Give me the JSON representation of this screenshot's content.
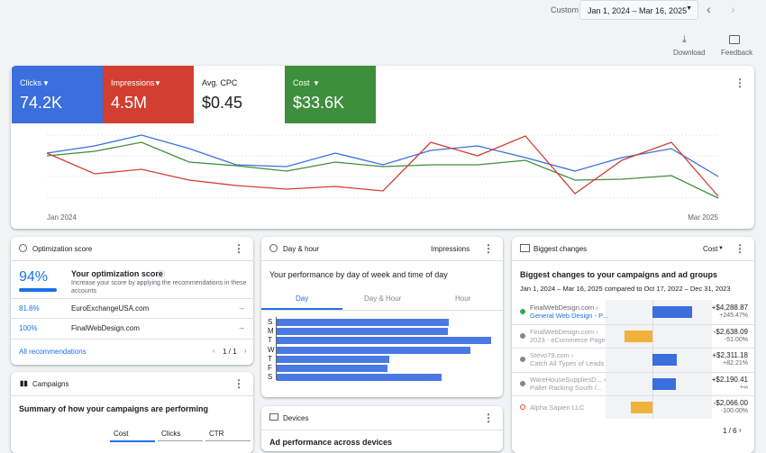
{
  "header": {
    "range_label": "Custom",
    "date_range": "Jan 1, 2024 – Mar 16, 2025",
    "download": "Download",
    "feedback": "Feedback"
  },
  "metrics": [
    {
      "label": "Clicks",
      "value": "74.2K"
    },
    {
      "label": "Impressions",
      "value": "4.5M"
    },
    {
      "label": "Avg. CPC",
      "value": "$0.45"
    },
    {
      "label": "Cost",
      "value": "$33.6K"
    }
  ],
  "overview_chart": {
    "x_labels": [
      "Jan 2024",
      "Mar 2025"
    ]
  },
  "optimization": {
    "title": "Optimization score",
    "score": "94%",
    "heading": "Your optimization score",
    "description": "Increase your score by applying the recommendations in these accounts",
    "rows": [
      {
        "score": "81.8%",
        "account": "EuroExchangeUSA.com"
      },
      {
        "score": "100%",
        "account": "FinalWebDesign.com"
      }
    ],
    "link": "All recommendations",
    "pager": "1 / 1"
  },
  "campaigns": {
    "title": "Campaigns",
    "subtitle": "Summary of how your campaigns are performing",
    "metrics": [
      "Cost",
      "Clicks",
      "CTR"
    ]
  },
  "day_hour": {
    "title": "Day & hour",
    "metric": "Impressions",
    "subtitle": "Your performance by day of week and time of day",
    "tabs": [
      "Day",
      "Day & Hour",
      "Hour"
    ],
    "days": [
      "S",
      "M",
      "T",
      "W",
      "T",
      "F",
      "S"
    ]
  },
  "devices": {
    "title": "Devices",
    "subtitle": "Ad performance across devices"
  },
  "biggest_changes": {
    "title": "Biggest changes",
    "metric": "Cost",
    "subtitle": "Biggest changes to your campaigns and ad groups",
    "compare": "Jan 1, 2024 – Mar 16, 2025 compared to Oct 17, 2022 – Dec 31, 2023",
    "rows": [
      {
        "name": "FinalWebDesign.com ›",
        "sub": "General Web Design - P...",
        "change": "+$4,288.87",
        "percent": "+245.47%"
      },
      {
        "name": "FinalWebDesign.com ›",
        "sub": "2023 - eCommerce Page",
        "change": "-$2,638.09",
        "percent": "-51.00%"
      },
      {
        "name": "Stevo79.com ›",
        "sub": "Catch All Types of Leads",
        "change": "+$2,311.18",
        "percent": "+82.21%"
      },
      {
        "name": "WareHouseSuppliesD... ›",
        "sub": "Pallet Racking South /...",
        "change": "+$2,190.41",
        "percent": "+∞"
      },
      {
        "name": "Alpha Sapien LLC",
        "sub": null,
        "change": "-$2,066.00",
        "percent": "-100.00%"
      }
    ],
    "pager": "1 / 6"
  }
}
